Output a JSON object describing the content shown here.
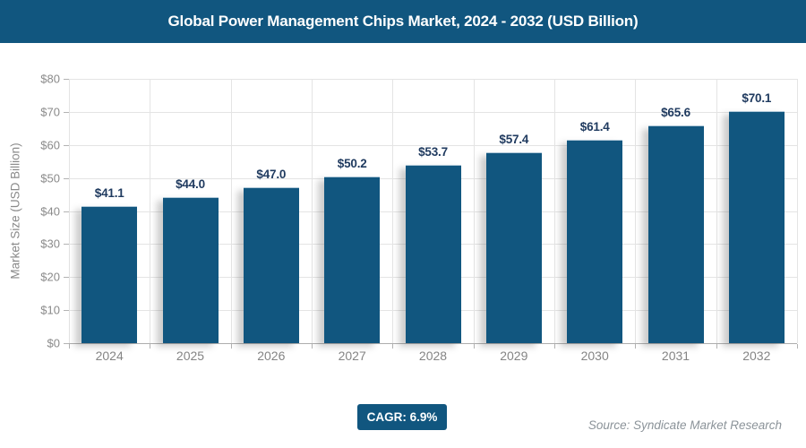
{
  "header": {
    "title": "Global Power Management Chips Market, 2024 - 2032 (USD Billion)"
  },
  "chart_data": {
    "type": "bar",
    "title": "Global Power Management Chips Market, 2024 - 2032 (USD Billion)",
    "categories": [
      "2024",
      "2025",
      "2026",
      "2027",
      "2028",
      "2029",
      "2030",
      "2031",
      "2032"
    ],
    "values": [
      41.1,
      44.0,
      47.0,
      50.2,
      53.7,
      57.4,
      61.4,
      65.6,
      70.1
    ],
    "value_labels": [
      "$41.1",
      "$44.0",
      "$47.0",
      "$50.2",
      "$53.7",
      "$57.4",
      "$61.4",
      "$65.6",
      "$70.1"
    ],
    "xlabel": "",
    "ylabel": "Market Size (USD Billion)",
    "ylim": [
      0,
      80
    ],
    "ytick_step": 10,
    "ytick_labels": [
      "$0",
      "$10",
      "$20",
      "$30",
      "$40",
      "$50",
      "$60",
      "$70",
      "$80"
    ],
    "grid": true,
    "legend": "none",
    "bar_color": "#11567F"
  },
  "footer": {
    "cagr_label": "CAGR: 6.9%",
    "source": "Source: Syndicate Market Research"
  },
  "colors": {
    "accent_blue": "#11567F",
    "data_label_navy": "#1F3A5F",
    "axis_text_gray": "#8A8A8A",
    "gridline_gray": "#E4E4E4",
    "source_gray": "#8B9399",
    "background": "#FFFFFF"
  }
}
